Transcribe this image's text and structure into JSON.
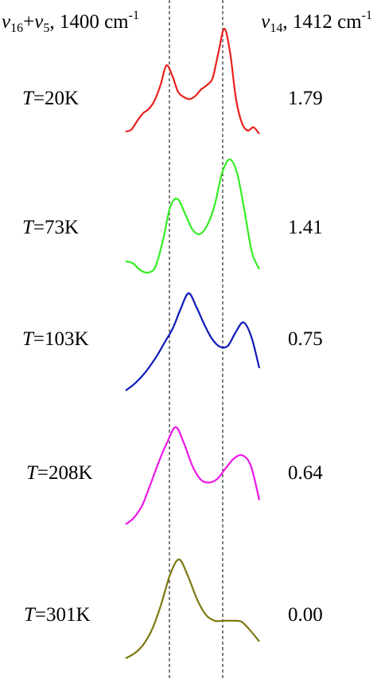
{
  "header": {
    "left": {
      "symbol": "ν",
      "sub_a": "16",
      "plus": "+",
      "sub_b": "5",
      "value": ", 1400 cm",
      "sup": "-1"
    },
    "right": {
      "symbol": "ν",
      "sub": "14",
      "value": ", 1412 cm",
      "sup": "-1"
    }
  },
  "chart_data": {
    "type": "line",
    "title": "",
    "xlabel": "",
    "ylabel": "",
    "grid": false,
    "reference_lines": [
      {
        "position": "ν16+ν5",
        "style": "dashed",
        "color": "#000000"
      },
      {
        "position": "ν14",
        "style": "dashed",
        "color": "#000000"
      }
    ],
    "series": [
      {
        "temp_prefix": "T",
        "temp_suffix": "=20K",
        "ratio": "1.79",
        "color": "#e8201c",
        "values": [
          0.05,
          0.07,
          0.15,
          0.22,
          0.26,
          0.34,
          0.48,
          0.66,
          0.57,
          0.42,
          0.37,
          0.35,
          0.38,
          0.44,
          0.48,
          0.55,
          0.79,
          1.0,
          0.77,
          0.35,
          0.13,
          0.06,
          0.09,
          0.03
        ]
      },
      {
        "temp_prefix": "T",
        "temp_suffix": "=73K",
        "ratio": "1.41",
        "color": "#33ee22",
        "values": [
          0.1,
          0.08,
          0.02,
          0.0,
          0.05,
          0.28,
          0.58,
          0.65,
          0.52,
          0.38,
          0.34,
          0.42,
          0.6,
          0.88,
          1.0,
          0.88,
          0.55,
          0.18,
          0.03
        ]
      },
      {
        "temp_prefix": "T",
        "temp_suffix": "=103K",
        "ratio": "0.75",
        "color": "#1018b8",
        "values": [
          0.0,
          0.06,
          0.14,
          0.24,
          0.36,
          0.5,
          0.64,
          0.84,
          1.0,
          0.86,
          0.68,
          0.53,
          0.45,
          0.46,
          0.6,
          0.7,
          0.55,
          0.23
        ]
      },
      {
        "temp_prefix": "T",
        "temp_suffix": "=208K",
        "ratio": "0.64",
        "color": "#ee16e8",
        "values": [
          0.0,
          0.07,
          0.2,
          0.42,
          0.65,
          0.85,
          1.0,
          0.83,
          0.6,
          0.46,
          0.43,
          0.47,
          0.58,
          0.68,
          0.71,
          0.6,
          0.25
        ]
      },
      {
        "temp_prefix": "T",
        "temp_suffix": "=301K",
        "ratio": "0.00",
        "color": "#7d7810",
        "values": [
          0.0,
          0.05,
          0.14,
          0.3,
          0.55,
          0.85,
          1.0,
          0.83,
          0.6,
          0.44,
          0.38,
          0.38,
          0.38,
          0.37,
          0.28,
          0.17
        ]
      }
    ]
  }
}
